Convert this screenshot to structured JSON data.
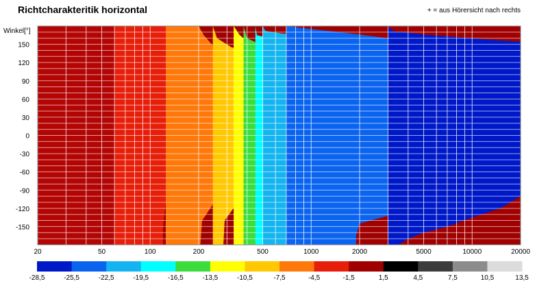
{
  "chart_data": {
    "type": "heatmap",
    "title": "Richtcharakteritik horizontal",
    "note": "+ = aus Hörersicht nach rechts",
    "ylabel": "Winkel[°]",
    "xlabel": "",
    "x_scale": "log",
    "xlim": [
      20,
      20000
    ],
    "ylim": [
      -180,
      180
    ],
    "x_ticks": [
      "20",
      "50",
      "100",
      "200",
      "500",
      "1000",
      "2000",
      "5000",
      "10000",
      "20000"
    ],
    "x_tick_values": [
      20,
      50,
      100,
      200,
      500,
      1000,
      2000,
      5000,
      10000,
      20000
    ],
    "y_ticks": [
      "150",
      "120",
      "90",
      "60",
      "30",
      "0",
      "-30",
      "-60",
      "-90",
      "-120",
      "-150"
    ],
    "y_tick_values": [
      150,
      120,
      90,
      60,
      30,
      0,
      -30,
      -60,
      -90,
      -120,
      -150
    ],
    "colorbar": {
      "labels": [
        "-28,5",
        "-25,5",
        "-22,5",
        "-19,5",
        "-16,5",
        "-13,5",
        "-10,5",
        "-7,5",
        "-4,5",
        "-1,5",
        "1,5",
        "4,5",
        "7,5",
        "10,5",
        "13,5"
      ],
      "colors": [
        "#0019c8",
        "#0a64f0",
        "#14b4f0",
        "#00ffff",
        "#3cdc3c",
        "#ffff00",
        "#ffc800",
        "#ff780a",
        "#e61e0a",
        "#a00000",
        "#000000",
        "#3c3c3c",
        "#8c8c8c",
        "#dcdcdc"
      ]
    },
    "contours": [
      {
        "level": "-1,5",
        "color": "#b40505",
        "points": [
          [
            20,
            180
          ],
          [
            45,
            180
          ],
          [
            60,
            180
          ],
          [
            80,
            180
          ],
          [
            100,
            180
          ],
          [
            125,
            180
          ],
          [
            125,
            165
          ],
          [
            200,
            150
          ],
          [
            400,
            140
          ],
          [
            700,
            135
          ],
          [
            1000,
            125
          ],
          [
            1500,
            110
          ],
          [
            2000,
            95
          ],
          [
            3000,
            85
          ],
          [
            5000,
            80
          ],
          [
            8000,
            70
          ],
          [
            12000,
            60
          ],
          [
            16000,
            50
          ],
          [
            20000,
            45
          ],
          [
            20000,
            -10
          ],
          [
            15000,
            -20
          ],
          [
            10000,
            -30
          ],
          [
            8000,
            -35
          ],
          [
            5000,
            -40
          ],
          [
            3000,
            -38
          ],
          [
            2000,
            -45
          ],
          [
            1500,
            -55
          ],
          [
            1000,
            -65
          ],
          [
            700,
            -70
          ],
          [
            400,
            -80
          ],
          [
            200,
            -90
          ],
          [
            125,
            -110
          ],
          [
            120,
            -150
          ],
          [
            120,
            -180
          ],
          [
            100,
            -180
          ],
          [
            80,
            -180
          ],
          [
            60,
            -180
          ],
          [
            45,
            -180
          ],
          [
            20,
            -180
          ]
        ]
      },
      {
        "level": "-4,5",
        "color": "#e61e0a",
        "points": [
          [
            60,
            180
          ],
          [
            125,
            180
          ],
          [
            125,
            165
          ],
          [
            200,
            150
          ],
          [
            400,
            140
          ],
          [
            700,
            135
          ],
          [
            1000,
            125
          ],
          [
            1500,
            110
          ],
          [
            2000,
            95
          ],
          [
            3000,
            85
          ],
          [
            5000,
            80
          ],
          [
            8000,
            70
          ],
          [
            12000,
            60
          ],
          [
            16000,
            50
          ],
          [
            20000,
            45
          ],
          [
            20000,
            -10
          ],
          [
            15000,
            -20
          ],
          [
            10000,
            -30
          ],
          [
            8000,
            -35
          ],
          [
            5000,
            -40
          ],
          [
            3000,
            -38
          ],
          [
            2000,
            -45
          ],
          [
            1500,
            -55
          ],
          [
            1000,
            -65
          ],
          [
            700,
            -70
          ],
          [
            400,
            -80
          ],
          [
            200,
            -90
          ],
          [
            125,
            -110
          ],
          [
            120,
            -150
          ],
          [
            120,
            -180
          ],
          [
            60,
            -180
          ]
        ]
      },
      {
        "level": "-7,5",
        "color": "#ff780a",
        "points": [
          [
            125,
            180
          ],
          [
            200,
            180
          ],
          [
            215,
            165
          ],
          [
            260,
            140
          ],
          [
            380,
            130
          ],
          [
            600,
            125
          ],
          [
            900,
            115
          ],
          [
            1300,
            100
          ],
          [
            2000,
            85
          ],
          [
            3000,
            78
          ],
          [
            5000,
            72
          ],
          [
            8000,
            62
          ],
          [
            12000,
            55
          ],
          [
            20000,
            48
          ],
          [
            20000,
            -5
          ],
          [
            12000,
            -20
          ],
          [
            8000,
            -32
          ],
          [
            5000,
            -50
          ],
          [
            3000,
            -60
          ],
          [
            2000,
            -65
          ],
          [
            1500,
            -70
          ],
          [
            1000,
            -75
          ],
          [
            600,
            -85
          ],
          [
            400,
            -95
          ],
          [
            250,
            -110
          ],
          [
            210,
            -140
          ],
          [
            205,
            -180
          ],
          [
            125,
            -180
          ]
        ]
      },
      {
        "level": "-10,5",
        "color": "#ffc800",
        "points": [
          [
            245,
            180
          ],
          [
            260,
            160
          ],
          [
            320,
            145
          ],
          [
            450,
            135
          ],
          [
            700,
            122
          ],
          [
            1000,
            112
          ],
          [
            1500,
            100
          ],
          [
            2000,
            90
          ],
          [
            3000,
            82
          ],
          [
            5000,
            76
          ],
          [
            8000,
            68
          ],
          [
            12000,
            60
          ],
          [
            20000,
            54
          ],
          [
            20000,
            0
          ],
          [
            15000,
            -15
          ],
          [
            10000,
            -28
          ],
          [
            7000,
            -40
          ],
          [
            5000,
            -55
          ],
          [
            3000,
            -65
          ],
          [
            2000,
            -72
          ],
          [
            1500,
            -78
          ],
          [
            1000,
            -82
          ],
          [
            700,
            -88
          ],
          [
            500,
            -95
          ],
          [
            350,
            -110
          ],
          [
            290,
            -140
          ],
          [
            285,
            -180
          ],
          [
            245,
            -180
          ]
        ]
      },
      {
        "level": "-13,5",
        "color": "#ffff00",
        "points": [
          [
            330,
            180
          ],
          [
            360,
            165
          ],
          [
            420,
            150
          ],
          [
            600,
            140
          ],
          [
            900,
            128
          ],
          [
            1300,
            118
          ],
          [
            2000,
            108
          ],
          [
            3000,
            100
          ],
          [
            5000,
            94
          ],
          [
            8000,
            86
          ],
          [
            12000,
            78
          ],
          [
            20000,
            72
          ],
          [
            20000,
            -20
          ],
          [
            12000,
            -35
          ],
          [
            8000,
            -50
          ],
          [
            5000,
            -65
          ],
          [
            3000,
            -78
          ],
          [
            2000,
            -85
          ],
          [
            1500,
            -90
          ],
          [
            1000,
            -95
          ],
          [
            700,
            -100
          ],
          [
            500,
            -105
          ],
          [
            420,
            -120
          ],
          [
            400,
            -150
          ],
          [
            400,
            -180
          ],
          [
            330,
            -180
          ]
        ]
      },
      {
        "level": "-16,5",
        "color": "#3cdc3c",
        "points": [
          [
            380,
            180
          ],
          [
            400,
            160
          ],
          [
            480,
            150
          ],
          [
            700,
            145
          ],
          [
            1000,
            138
          ],
          [
            1500,
            130
          ],
          [
            2000,
            122
          ],
          [
            3000,
            116
          ],
          [
            5000,
            110
          ],
          [
            8000,
            104
          ],
          [
            12000,
            98
          ],
          [
            20000,
            92
          ],
          [
            20000,
            -35
          ],
          [
            12000,
            -55
          ],
          [
            8000,
            -70
          ],
          [
            5000,
            -85
          ],
          [
            3000,
            -95
          ],
          [
            2000,
            -102
          ],
          [
            1500,
            -108
          ],
          [
            1000,
            -115
          ],
          [
            800,
            -125
          ],
          [
            700,
            -145
          ],
          [
            700,
            -180
          ],
          [
            380,
            -180
          ]
        ]
      },
      {
        "level": "-19,5",
        "color": "#00ffff",
        "points": [
          [
            450,
            180
          ],
          [
            460,
            165
          ],
          [
            550,
            160
          ],
          [
            800,
            155
          ],
          [
            1200,
            148
          ],
          [
            2000,
            140
          ],
          [
            3000,
            134
          ],
          [
            5000,
            128
          ],
          [
            8000,
            122
          ],
          [
            12000,
            116
          ],
          [
            20000,
            110
          ],
          [
            20000,
            -50
          ],
          [
            12000,
            -70
          ],
          [
            8000,
            -85
          ],
          [
            5000,
            -100
          ],
          [
            3000,
            -110
          ],
          [
            2000,
            -118
          ],
          [
            1500,
            -125
          ],
          [
            1100,
            -140
          ],
          [
            1000,
            -160
          ],
          [
            1000,
            -180
          ],
          [
            450,
            -180
          ]
        ]
      },
      {
        "level": "-22,5",
        "color": "#14b4f0",
        "points": [
          [
            500,
            180
          ],
          [
            520,
            172
          ],
          [
            650,
            168
          ],
          [
            1000,
            162
          ],
          [
            1500,
            158
          ],
          [
            2000,
            152
          ],
          [
            3000,
            146
          ],
          [
            5000,
            140
          ],
          [
            8000,
            136
          ],
          [
            12000,
            130
          ],
          [
            20000,
            125
          ],
          [
            20000,
            -60
          ],
          [
            12000,
            -80
          ],
          [
            8000,
            -95
          ],
          [
            5000,
            -108
          ],
          [
            3000,
            -118
          ],
          [
            2000,
            -126
          ],
          [
            1600,
            -140
          ],
          [
            1500,
            -160
          ],
          [
            1500,
            -180
          ],
          [
            500,
            -180
          ]
        ]
      },
      {
        "level": "-25,5",
        "color": "#0a64f0",
        "points": [
          [
            700,
            180
          ],
          [
            1000,
            175
          ],
          [
            1500,
            170
          ],
          [
            2000,
            166
          ],
          [
            3000,
            160
          ],
          [
            5000,
            155
          ],
          [
            8000,
            150
          ],
          [
            12000,
            145
          ],
          [
            20000,
            140
          ],
          [
            20000,
            -80
          ],
          [
            12000,
            -100
          ],
          [
            8000,
            -112
          ],
          [
            5000,
            -122
          ],
          [
            3000,
            -132
          ],
          [
            2000,
            -145
          ],
          [
            1900,
            -165
          ],
          [
            1900,
            -180
          ],
          [
            700,
            -180
          ]
        ]
      },
      {
        "level": "-28,5",
        "color": "#0019c8",
        "points": [
          [
            3000,
            180
          ],
          [
            3200,
            172
          ],
          [
            5000,
            166
          ],
          [
            8000,
            162
          ],
          [
            12000,
            158
          ],
          [
            20000,
            154
          ],
          [
            20000,
            -100
          ],
          [
            15000,
            -120
          ],
          [
            10000,
            -135
          ],
          [
            7000,
            -150
          ],
          [
            5000,
            -160
          ],
          [
            4000,
            -170
          ],
          [
            3500,
            -180
          ],
          [
            3000,
            -180
          ]
        ]
      }
    ]
  }
}
